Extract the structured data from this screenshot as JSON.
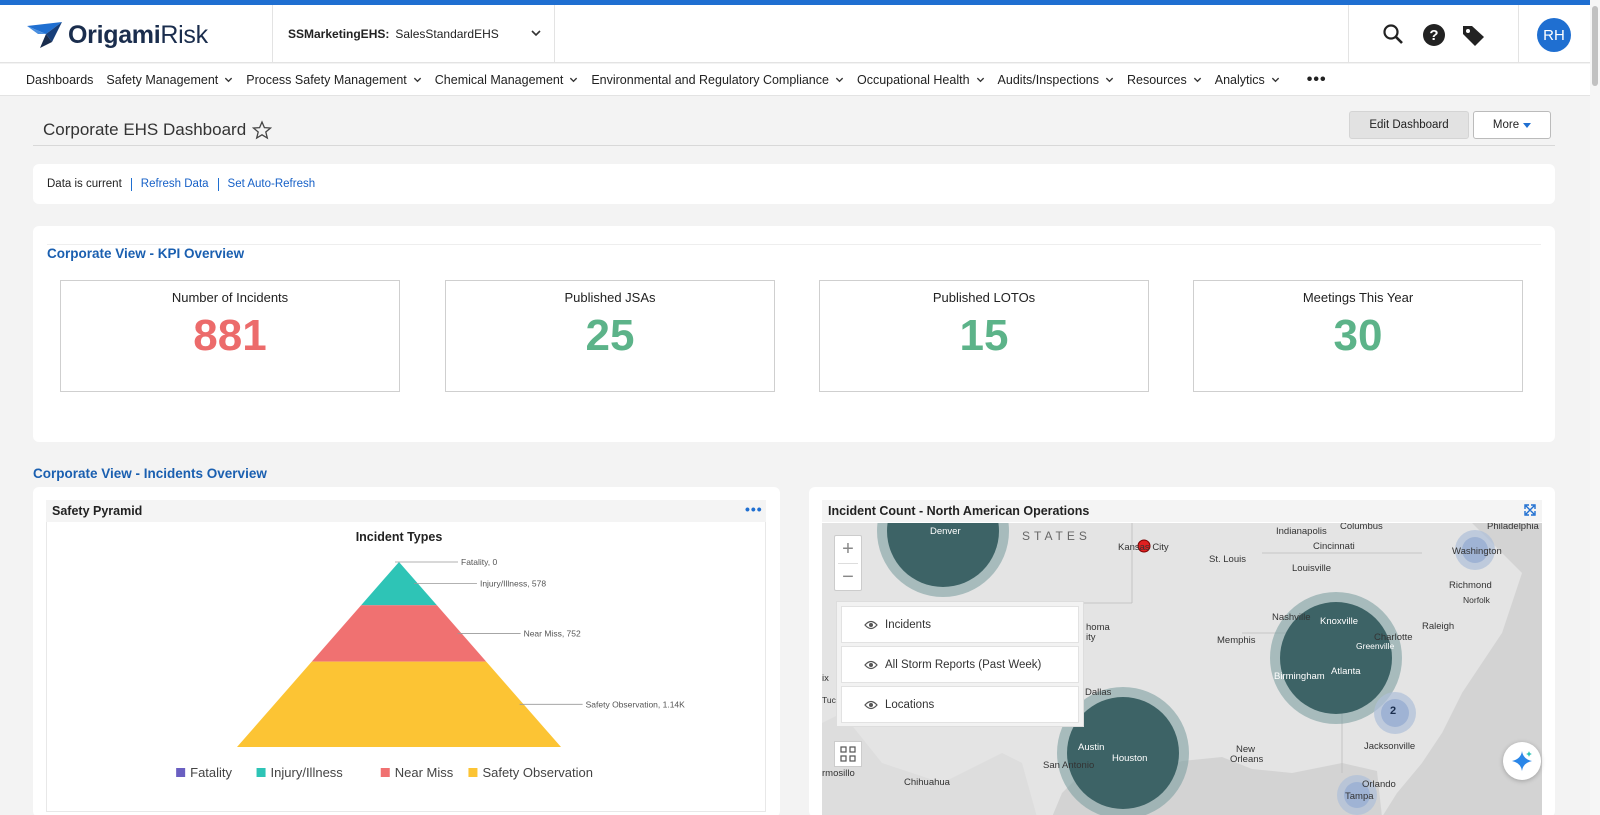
{
  "header": {
    "logo_text_bold": "Origami",
    "logo_text_light": "Risk",
    "env_label": "SSMarketingEHS:",
    "env_value": "SalesStandardEHS",
    "user_initials": "RH",
    "icons": [
      "search-icon",
      "help-icon",
      "tag-icon"
    ]
  },
  "nav": {
    "items": [
      {
        "label": "Dashboards",
        "dropdown": false
      },
      {
        "label": "Safety Management",
        "dropdown": true
      },
      {
        "label": "Process Safety Management",
        "dropdown": true
      },
      {
        "label": "Chemical Management",
        "dropdown": true
      },
      {
        "label": "Environmental and Regulatory Compliance",
        "dropdown": true
      },
      {
        "label": "Occupational Health",
        "dropdown": true
      },
      {
        "label": "Audits/Inspections",
        "dropdown": true
      },
      {
        "label": "Resources",
        "dropdown": true
      },
      {
        "label": "Analytics",
        "dropdown": true
      }
    ],
    "more": "•••"
  },
  "page": {
    "title": "Corporate EHS Dashboard",
    "edit_button": "Edit Dashboard",
    "more_button": "More"
  },
  "status": {
    "text": "Data is current",
    "refresh_link": "Refresh Data",
    "auto_refresh_link": "Set Auto-Refresh"
  },
  "kpi": {
    "title": "Corporate View - KPI Overview",
    "tiles": [
      {
        "label": "Number of Incidents",
        "value": "881",
        "color": "#ec6b6b"
      },
      {
        "label": "Published JSAs",
        "value": "25",
        "color": "#5cb389"
      },
      {
        "label": "Published LOTOs",
        "value": "15",
        "color": "#5cb389"
      },
      {
        "label": "Meetings This Year",
        "value": "30",
        "color": "#5cb389"
      }
    ]
  },
  "incidents": {
    "title": "Corporate View - Incidents Overview",
    "pyramid_panel_title": "Safety Pyramid",
    "map_panel_title": "Incident Count - North American Operations"
  },
  "chart_data": {
    "type": "pyramid",
    "title": "Incident Types",
    "series": [
      {
        "name": "Fatality",
        "value": 0,
        "label": "Fatality, 0",
        "color": "#6a5fc1"
      },
      {
        "name": "Injury/Illness",
        "value": 578,
        "label": "Injury/Illness, 578",
        "color": "#2ec4b6"
      },
      {
        "name": "Near Miss",
        "value": 752,
        "label": "Near Miss, 752",
        "color": "#f07171"
      },
      {
        "name": "Safety Observation",
        "value": 1140,
        "label": "Safety Observation, 1.14K",
        "color": "#fcc434"
      }
    ],
    "legend_position": "bottom"
  },
  "map": {
    "labels": [
      {
        "text": "Denver"
      },
      {
        "text": "STATES"
      },
      {
        "text": "Kansas City"
      },
      {
        "text": "St. Louis"
      },
      {
        "text": "Indianapolis"
      },
      {
        "text": "Columbus"
      },
      {
        "text": "Cincinnati"
      },
      {
        "text": "Louisville"
      },
      {
        "text": "Philadelphia"
      },
      {
        "text": "Washington"
      },
      {
        "text": "Richmond"
      },
      {
        "text": "Norfolk"
      },
      {
        "text": "Nashville"
      },
      {
        "text": "Knoxville"
      },
      {
        "text": "Raleigh"
      },
      {
        "text": "Charlotte"
      },
      {
        "text": "Greenville"
      },
      {
        "text": "Memphis"
      },
      {
        "text": "Birmingham"
      },
      {
        "text": "Atlanta"
      },
      {
        "text": "homa"
      },
      {
        "text": "ity"
      },
      {
        "text": "Dallas"
      },
      {
        "text": "Austin"
      },
      {
        "text": "Houston"
      },
      {
        "text": "San Antonio"
      },
      {
        "text": "New"
      },
      {
        "text": "Orleans"
      },
      {
        "text": "Jacksonville"
      },
      {
        "text": "Orlando"
      },
      {
        "text": "Tampa"
      },
      {
        "text": "Chihuahua"
      },
      {
        "text": "rmosillo"
      },
      {
        "text": "ix"
      },
      {
        "text": "Tuc"
      }
    ],
    "cluster_count": "2",
    "layers": [
      "Incidents",
      "All Storm Reports (Past Week)",
      "Locations"
    ]
  },
  "colors": {
    "accent": "#1f6fd1",
    "cluster_dark": "#3d6366",
    "cluster_ring": "#7fa0a1"
  }
}
